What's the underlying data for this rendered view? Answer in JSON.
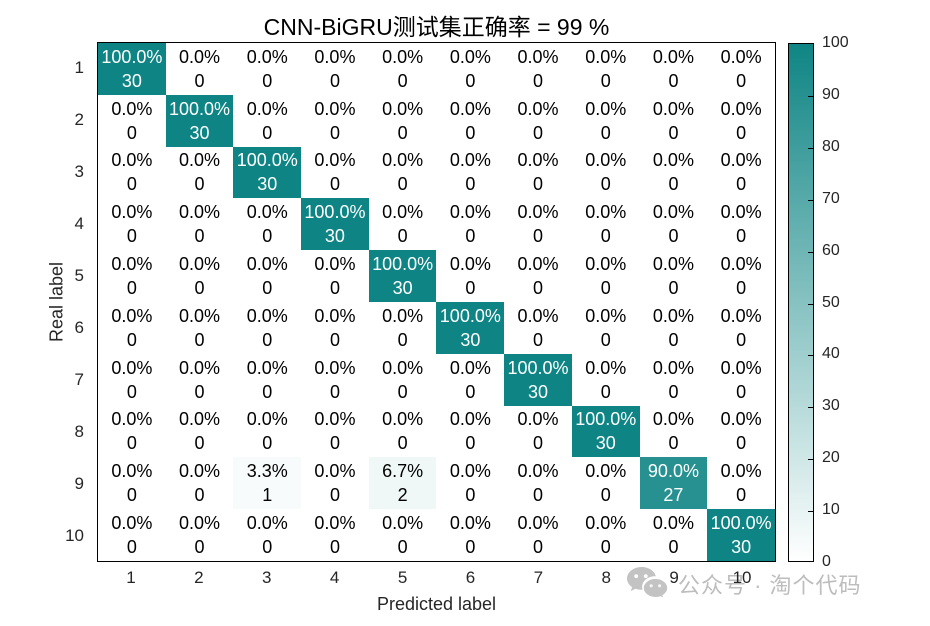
{
  "title": "CNN-BiGRU测试集正确率 = 99 %",
  "chart_data": {
    "type": "heatmap",
    "title": "CNN-BiGRU测试集正确率 = 99 %",
    "xlabel": "Predicted label",
    "ylabel": "Real label",
    "x_ticks": [
      "1",
      "2",
      "3",
      "4",
      "5",
      "6",
      "7",
      "8",
      "9",
      "10"
    ],
    "y_ticks": [
      "1",
      "2",
      "3",
      "4",
      "5",
      "6",
      "7",
      "8",
      "9",
      "10"
    ],
    "cell_lines": [
      "percent",
      "count"
    ],
    "percents": [
      [
        100.0,
        0.0,
        0.0,
        0.0,
        0.0,
        0.0,
        0.0,
        0.0,
        0.0,
        0.0
      ],
      [
        0.0,
        100.0,
        0.0,
        0.0,
        0.0,
        0.0,
        0.0,
        0.0,
        0.0,
        0.0
      ],
      [
        0.0,
        0.0,
        100.0,
        0.0,
        0.0,
        0.0,
        0.0,
        0.0,
        0.0,
        0.0
      ],
      [
        0.0,
        0.0,
        0.0,
        100.0,
        0.0,
        0.0,
        0.0,
        0.0,
        0.0,
        0.0
      ],
      [
        0.0,
        0.0,
        0.0,
        0.0,
        100.0,
        0.0,
        0.0,
        0.0,
        0.0,
        0.0
      ],
      [
        0.0,
        0.0,
        0.0,
        0.0,
        0.0,
        100.0,
        0.0,
        0.0,
        0.0,
        0.0
      ],
      [
        0.0,
        0.0,
        0.0,
        0.0,
        0.0,
        0.0,
        100.0,
        0.0,
        0.0,
        0.0
      ],
      [
        0.0,
        0.0,
        0.0,
        0.0,
        0.0,
        0.0,
        0.0,
        100.0,
        0.0,
        0.0
      ],
      [
        0.0,
        0.0,
        3.3,
        0.0,
        6.7,
        0.0,
        0.0,
        0.0,
        90.0,
        0.0
      ],
      [
        0.0,
        0.0,
        0.0,
        0.0,
        0.0,
        0.0,
        0.0,
        0.0,
        0.0,
        100.0
      ]
    ],
    "counts": [
      [
        30,
        0,
        0,
        0,
        0,
        0,
        0,
        0,
        0,
        0
      ],
      [
        0,
        30,
        0,
        0,
        0,
        0,
        0,
        0,
        0,
        0
      ],
      [
        0,
        0,
        30,
        0,
        0,
        0,
        0,
        0,
        0,
        0
      ],
      [
        0,
        0,
        0,
        30,
        0,
        0,
        0,
        0,
        0,
        0
      ],
      [
        0,
        0,
        0,
        0,
        30,
        0,
        0,
        0,
        0,
        0
      ],
      [
        0,
        0,
        0,
        0,
        0,
        30,
        0,
        0,
        0,
        0
      ],
      [
        0,
        0,
        0,
        0,
        0,
        0,
        30,
        0,
        0,
        0
      ],
      [
        0,
        0,
        0,
        0,
        0,
        0,
        0,
        30,
        0,
        0
      ],
      [
        0,
        0,
        1,
        0,
        2,
        0,
        0,
        0,
        27,
        0
      ],
      [
        0,
        0,
        0,
        0,
        0,
        0,
        0,
        0,
        0,
        30
      ]
    ],
    "colormap": {
      "low": "#ffffff",
      "high": "#0e8584"
    },
    "text_colors": {
      "light_cell": "#000000",
      "dark_cell": "#ffffff",
      "threshold": 50
    },
    "colorbar": {
      "min": 0,
      "max": 100,
      "ticks": [
        0,
        10,
        20,
        30,
        40,
        50,
        60,
        70,
        80,
        90,
        100
      ]
    },
    "grid": false,
    "legend_position": "colorbar-right"
  },
  "watermark": {
    "text": "公众号 · 淘个代码",
    "icon": "wechat-icon",
    "color": "#bdbdbd"
  }
}
